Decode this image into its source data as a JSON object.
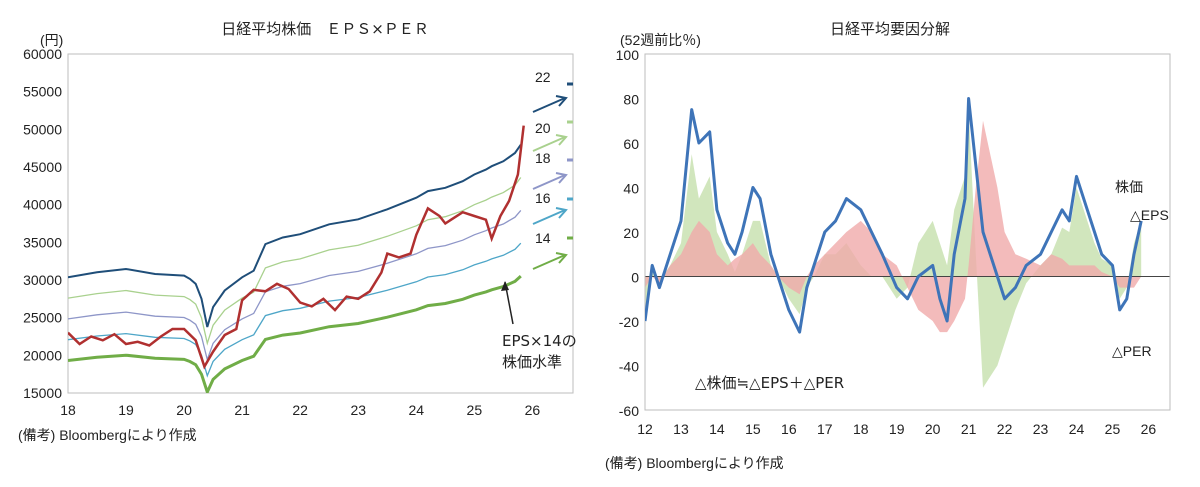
{
  "chart_data": [
    {
      "type": "line",
      "title": "日経平均株価　ＥＰＳ×ＰＥＲ",
      "ylabel": "(円)",
      "ylim": [
        15000,
        60000
      ],
      "y_ticks": [
        "60000",
        "55000",
        "50000",
        "45000",
        "40000",
        "35000",
        "30000",
        "25000",
        "20000",
        "15000"
      ],
      "x_ticks": [
        "18",
        "19",
        "20",
        "21",
        "22",
        "23",
        "24",
        "25",
        "26"
      ],
      "xlim": [
        18,
        26.7
      ],
      "source": "(備考) Bloombergにより作成",
      "x": [
        18.0,
        18.5,
        19.0,
        19.5,
        20.0,
        20.1,
        20.2,
        20.3,
        20.4,
        20.5,
        20.7,
        21.0,
        21.2,
        21.4,
        21.7,
        22.0,
        22.5,
        23.0,
        23.5,
        24.0,
        24.2,
        24.5,
        24.8,
        25.0,
        25.2,
        25.3,
        25.5,
        25.7,
        25.8
      ],
      "eps": [
        1380,
        1410,
        1430,
        1400,
        1390,
        1370,
        1340,
        1250,
        1080,
        1200,
        1300,
        1380,
        1420,
        1580,
        1620,
        1640,
        1700,
        1730,
        1790,
        1860,
        1900,
        1920,
        1960,
        2000,
        2030,
        2050,
        2080,
        2130,
        2180
      ],
      "series": [
        {
          "name": "PER22",
          "multiplier": 22,
          "color": "#1f4e79"
        },
        {
          "name": "PER20",
          "multiplier": 20,
          "color": "#a9d18e"
        },
        {
          "name": "PER18",
          "multiplier": 18,
          "color": "#8e96c8"
        },
        {
          "name": "PER16",
          "multiplier": 16,
          "color": "#4ea6c8"
        },
        {
          "name": "PER14",
          "multiplier": 14,
          "color": "#70ad47"
        }
      ],
      "price": {
        "name": "日経平均株価",
        "color": "#b03030",
        "x": [
          18.0,
          18.2,
          18.4,
          18.6,
          18.8,
          19.0,
          19.2,
          19.4,
          19.6,
          19.8,
          20.0,
          20.2,
          20.35,
          20.5,
          20.7,
          20.9,
          21.0,
          21.2,
          21.4,
          21.6,
          21.8,
          22.0,
          22.2,
          22.4,
          22.6,
          22.8,
          23.0,
          23.2,
          23.4,
          23.5,
          23.7,
          23.9,
          24.0,
          24.2,
          24.4,
          24.5,
          24.6,
          24.8,
          25.0,
          25.2,
          25.3,
          25.45,
          25.6,
          25.75,
          25.85
        ],
        "y": [
          23000,
          21500,
          22500,
          22000,
          22800,
          21500,
          21800,
          21300,
          22500,
          23500,
          23500,
          22000,
          18500,
          20500,
          22700,
          23500,
          27300,
          28700,
          28500,
          29500,
          28800,
          27000,
          26500,
          27500,
          26000,
          27800,
          27500,
          28500,
          31000,
          33500,
          33000,
          33500,
          36000,
          39500,
          38500,
          37500,
          38000,
          39000,
          38500,
          38000,
          35500,
          38500,
          40500,
          44000,
          50500
        ]
      },
      "labels": [
        {
          "name": "label-22",
          "text": "22",
          "color": "#1f4e79"
        },
        {
          "name": "label-20",
          "text": "20",
          "color": "#a9d18e"
        },
        {
          "name": "label-18",
          "text": "18",
          "color": "#8e96c8"
        },
        {
          "name": "label-16",
          "text": "16",
          "color": "#4ea6c8"
        },
        {
          "name": "label-14",
          "text": "14",
          "color": "#70ad47"
        }
      ],
      "annotation": {
        "line1": "EPS×14の",
        "line2": "株価水準"
      }
    },
    {
      "type": "area",
      "title": "日経平均要因分解",
      "ylabel": "(52週前比％)",
      "ylim": [
        -60,
        100
      ],
      "y_ticks": [
        "100",
        "80",
        "60",
        "40",
        "20",
        "0",
        "-20",
        "-40",
        "-60"
      ],
      "x_ticks": [
        "12",
        "13",
        "14",
        "15",
        "16",
        "17",
        "18",
        "19",
        "20",
        "21",
        "22",
        "23",
        "24",
        "25",
        "26"
      ],
      "xlim": [
        12,
        26.6
      ],
      "source": "(備考) Bloombergにより作成",
      "formula": "△株価≒△EPS＋△PER",
      "legend": [
        {
          "text": "株価",
          "color": "#3e74b8"
        },
        {
          "text": "△EPS",
          "color": "#e05a5a"
        },
        {
          "text": "△PER",
          "color": "#8ec36a"
        }
      ],
      "x": [
        12.0,
        12.2,
        12.4,
        12.7,
        13.0,
        13.3,
        13.5,
        13.8,
        14.0,
        14.3,
        14.5,
        14.7,
        15.0,
        15.2,
        15.5,
        15.7,
        16.0,
        16.3,
        16.5,
        16.7,
        17.0,
        17.3,
        17.6,
        18.0,
        18.3,
        18.6,
        19.0,
        19.3,
        19.6,
        20.0,
        20.2,
        20.4,
        20.6,
        20.9,
        21.0,
        21.2,
        21.4,
        21.6,
        21.8,
        22.0,
        22.3,
        22.6,
        23.0,
        23.3,
        23.6,
        23.8,
        24.0,
        24.3,
        24.5,
        24.7,
        25.0,
        25.2,
        25.4,
        25.6,
        25.8
      ],
      "price": [
        -20,
        5,
        -5,
        10,
        25,
        75,
        60,
        65,
        30,
        15,
        10,
        20,
        40,
        35,
        10,
        0,
        -15,
        -25,
        -5,
        5,
        20,
        25,
        35,
        30,
        20,
        10,
        -5,
        -10,
        0,
        5,
        -10,
        -20,
        10,
        35,
        80,
        50,
        20,
        10,
        0,
        -10,
        -5,
        5,
        10,
        20,
        30,
        25,
        45,
        30,
        20,
        10,
        5,
        -15,
        -10,
        10,
        25
      ],
      "eps": [
        -5,
        0,
        -3,
        5,
        10,
        20,
        25,
        20,
        10,
        5,
        8,
        10,
        15,
        10,
        5,
        0,
        -5,
        -8,
        0,
        5,
        10,
        15,
        20,
        25,
        20,
        10,
        5,
        -5,
        -15,
        -20,
        -25,
        -25,
        -20,
        -10,
        5,
        40,
        70,
        55,
        40,
        20,
        10,
        8,
        5,
        10,
        8,
        5,
        5,
        5,
        5,
        2,
        0,
        -5,
        -5,
        -5,
        0
      ],
      "per": [
        -15,
        5,
        -2,
        5,
        15,
        55,
        35,
        45,
        20,
        10,
        2,
        10,
        25,
        25,
        5,
        0,
        -10,
        -17,
        -5,
        0,
        10,
        10,
        15,
        5,
        0,
        0,
        -10,
        -5,
        15,
        25,
        15,
        5,
        30,
        45,
        75,
        10,
        -50,
        -45,
        -40,
        -30,
        -15,
        -3,
        5,
        10,
        22,
        20,
        40,
        25,
        15,
        8,
        5,
        -10,
        -5,
        15,
        25
      ]
    }
  ]
}
